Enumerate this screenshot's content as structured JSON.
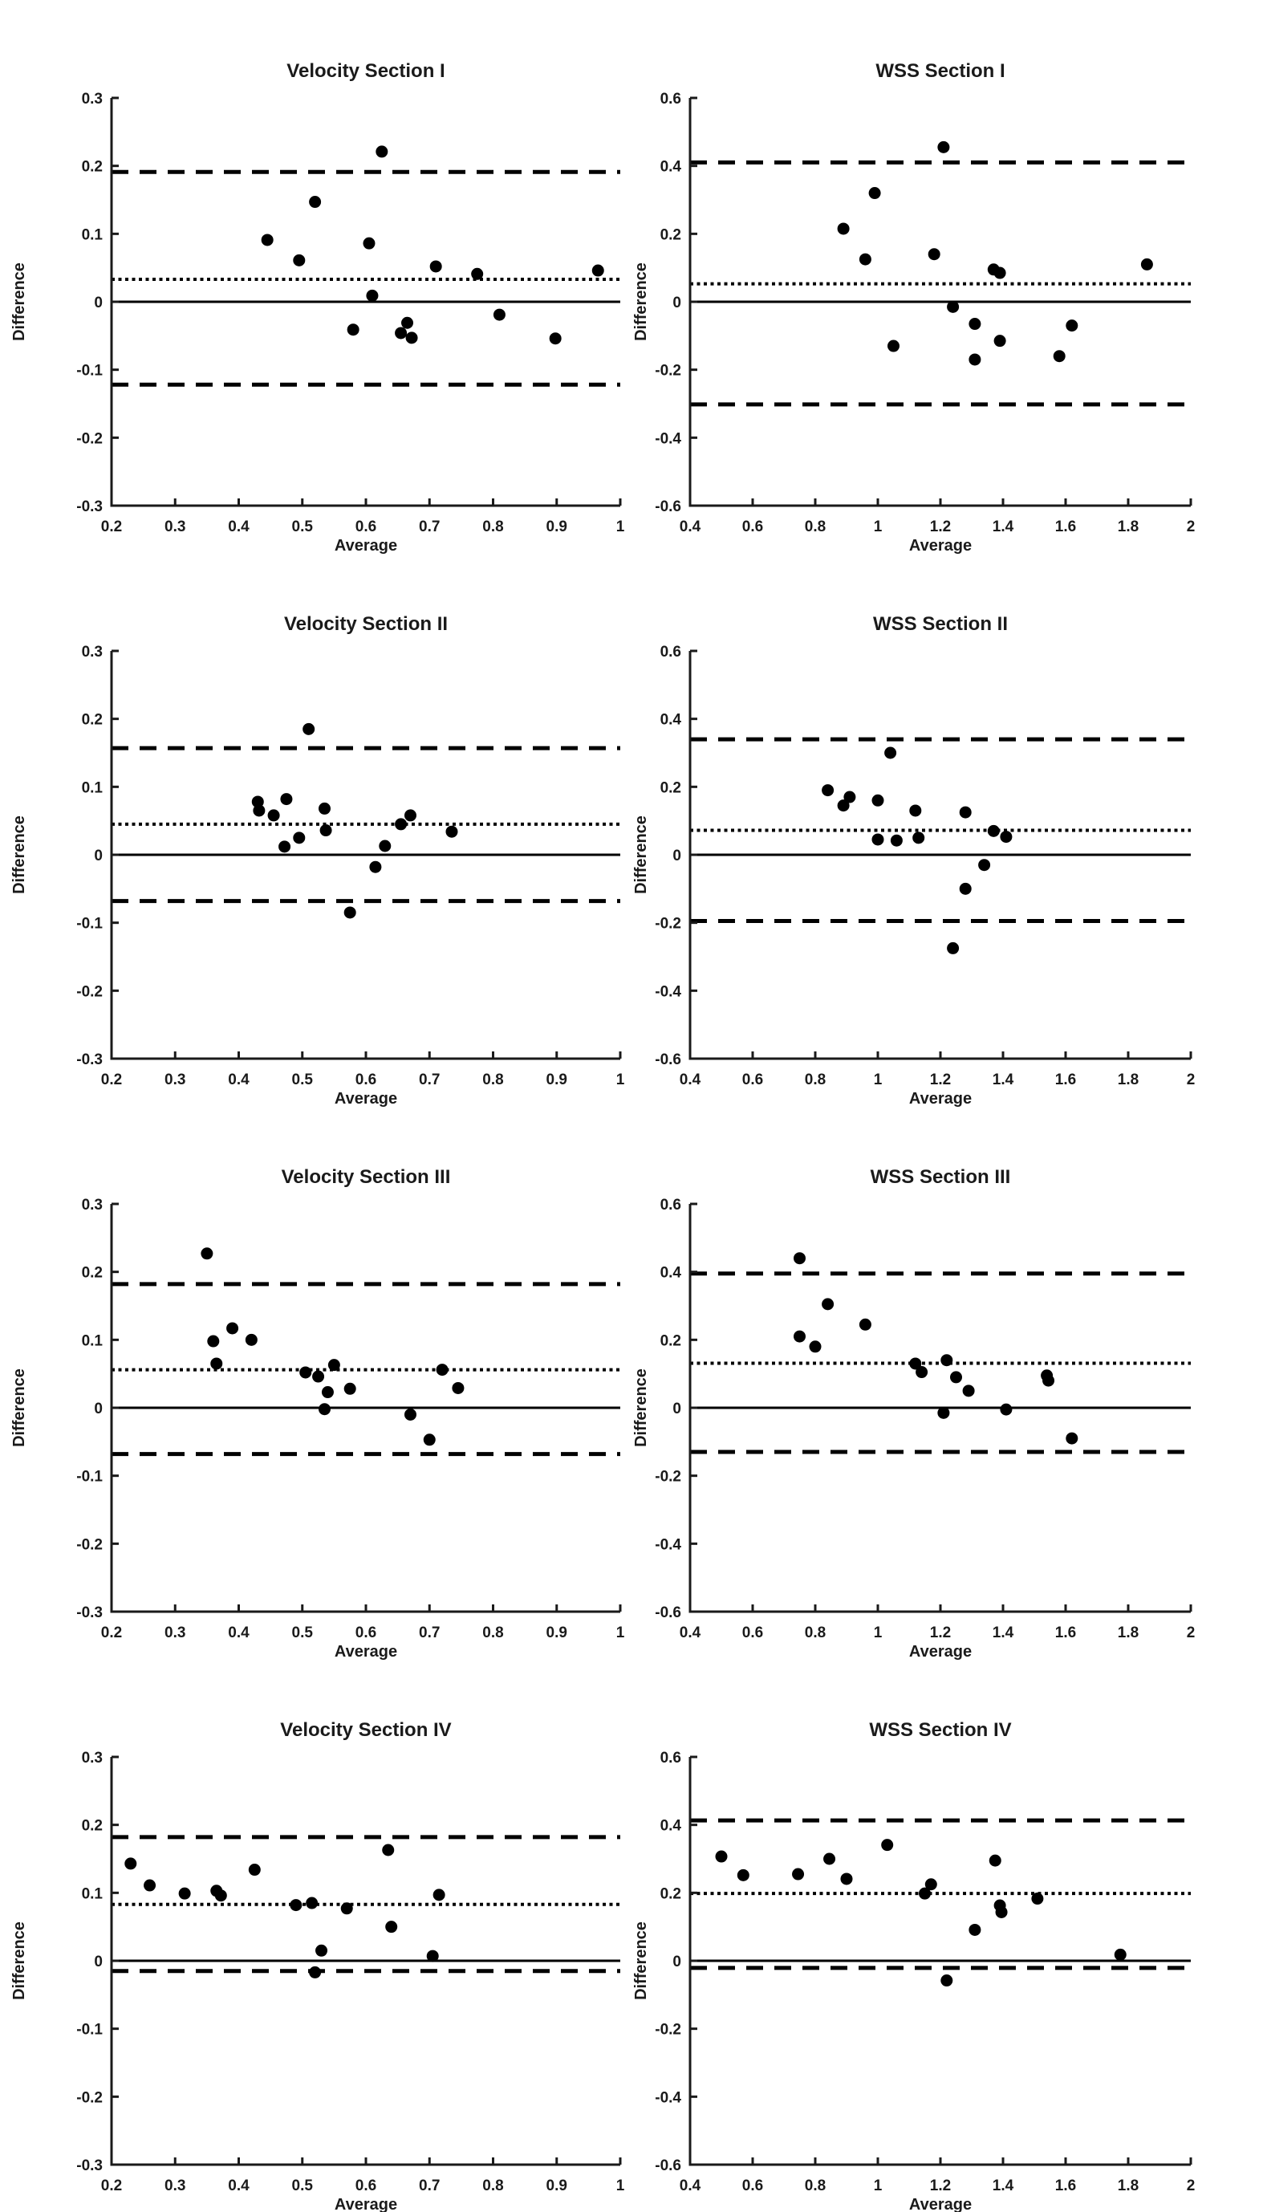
{
  "figure": {
    "background": "#ffffff",
    "data_ink": "#000000",
    "axis_color": "#1a1a1a",
    "marker": "filled-circle",
    "marker_radius": 7.5
  },
  "chart_data": [
    {
      "type": "scatter",
      "title": "Velocity Section I",
      "xlabel": "Average",
      "ylabel": "Difference",
      "xlim": [
        0.2,
        1
      ],
      "ylim": [
        -0.3,
        0.3
      ],
      "grid": false,
      "legend": false,
      "xticks": [
        0.2,
        0.3,
        0.4,
        0.5,
        0.6,
        0.7,
        0.8,
        0.9,
        1
      ],
      "xtick_labels": [
        "0.2",
        "0.3",
        "0.4",
        "0.5",
        "0.6",
        "0.7",
        "0.8",
        "0.9",
        "1"
      ],
      "yticks": [
        -0.3,
        -0.2,
        -0.1,
        0,
        0.1,
        0.2,
        0.3
      ],
      "ytick_labels": [
        "-0.3",
        "-0.2",
        "-0.1",
        "0",
        "0.1",
        "0.2",
        "0.3"
      ],
      "lines": {
        "zero": 0,
        "mean_bias": 0.033,
        "upper_loa": 0.191,
        "lower_loa": -0.122
      },
      "points": [
        [
          0.445,
          0.091
        ],
        [
          0.495,
          0.061
        ],
        [
          0.52,
          0.147
        ],
        [
          0.58,
          -0.041
        ],
        [
          0.605,
          0.086
        ],
        [
          0.61,
          0.009
        ],
        [
          0.625,
          0.221
        ],
        [
          0.655,
          -0.046
        ],
        [
          0.665,
          -0.031
        ],
        [
          0.672,
          -0.053
        ],
        [
          0.71,
          0.052
        ],
        [
          0.775,
          0.041
        ],
        [
          0.81,
          -0.019
        ],
        [
          0.898,
          -0.054
        ],
        [
          0.965,
          0.046
        ]
      ]
    },
    {
      "type": "scatter",
      "title": "WSS Section I",
      "xlabel": "Average",
      "ylabel": "Difference",
      "xlim": [
        0.4,
        2
      ],
      "ylim": [
        -0.6,
        0.6
      ],
      "grid": false,
      "legend": false,
      "xticks": [
        0.4,
        0.6,
        0.8,
        1,
        1.2,
        1.4,
        1.6,
        1.8,
        2
      ],
      "xtick_labels": [
        "0.4",
        "0.6",
        "0.8",
        "1",
        "1.2",
        "1.4",
        "1.6",
        "1.8",
        "2"
      ],
      "yticks": [
        -0.6,
        -0.4,
        -0.2,
        0,
        0.2,
        0.4,
        0.6
      ],
      "ytick_labels": [
        "-0.6",
        "-0.4",
        "-0.2",
        "0",
        "0.2",
        "0.4",
        "0.6"
      ],
      "lines": {
        "zero": 0,
        "mean_bias": 0.053,
        "upper_loa": 0.41,
        "lower_loa": -0.302
      },
      "points": [
        [
          0.89,
          0.215
        ],
        [
          0.96,
          0.125
        ],
        [
          0.99,
          0.32
        ],
        [
          1.05,
          -0.13
        ],
        [
          1.18,
          0.14
        ],
        [
          1.21,
          0.455
        ],
        [
          1.24,
          -0.015
        ],
        [
          1.31,
          -0.065
        ],
        [
          1.31,
          -0.17
        ],
        [
          1.37,
          0.095
        ],
        [
          1.39,
          0.085
        ],
        [
          1.39,
          -0.115
        ],
        [
          1.58,
          -0.16
        ],
        [
          1.62,
          -0.07
        ],
        [
          1.86,
          0.11
        ]
      ]
    },
    {
      "type": "scatter",
      "title": "Velocity Section II",
      "xlabel": "Average",
      "ylabel": "Difference",
      "xlim": [
        0.2,
        1
      ],
      "ylim": [
        -0.3,
        0.3
      ],
      "grid": false,
      "legend": false,
      "xticks": [
        0.2,
        0.3,
        0.4,
        0.5,
        0.6,
        0.7,
        0.8,
        0.9,
        1
      ],
      "xtick_labels": [
        "0.2",
        "0.3",
        "0.4",
        "0.5",
        "0.6",
        "0.7",
        "0.8",
        "0.9",
        "1"
      ],
      "yticks": [
        -0.3,
        -0.2,
        -0.1,
        0,
        0.1,
        0.2,
        0.3
      ],
      "ytick_labels": [
        "-0.3",
        "-0.2",
        "-0.1",
        "0",
        "0.1",
        "0.2",
        "0.3"
      ],
      "lines": {
        "zero": 0,
        "mean_bias": 0.045,
        "upper_loa": 0.157,
        "lower_loa": -0.068
      },
      "points": [
        [
          0.43,
          0.078
        ],
        [
          0.432,
          0.065
        ],
        [
          0.455,
          0.058
        ],
        [
          0.472,
          0.012
        ],
        [
          0.475,
          0.082
        ],
        [
          0.495,
          0.025
        ],
        [
          0.51,
          0.185
        ],
        [
          0.535,
          0.068
        ],
        [
          0.537,
          0.036
        ],
        [
          0.575,
          -0.085
        ],
        [
          0.615,
          -0.018
        ],
        [
          0.63,
          0.013
        ],
        [
          0.655,
          0.045
        ],
        [
          0.67,
          0.058
        ],
        [
          0.735,
          0.034
        ]
      ]
    },
    {
      "type": "scatter",
      "title": "WSS Section II",
      "xlabel": "Average",
      "ylabel": "Difference",
      "xlim": [
        0.4,
        2
      ],
      "ylim": [
        -0.6,
        0.6
      ],
      "grid": false,
      "legend": false,
      "xticks": [
        0.4,
        0.6,
        0.8,
        1,
        1.2,
        1.4,
        1.6,
        1.8,
        2
      ],
      "xtick_labels": [
        "0.4",
        "0.6",
        "0.8",
        "1",
        "1.2",
        "1.4",
        "1.6",
        "1.8",
        "2"
      ],
      "yticks": [
        -0.6,
        -0.4,
        -0.2,
        0,
        0.2,
        0.4,
        0.6
      ],
      "ytick_labels": [
        "-0.6",
        "-0.4",
        "-0.2",
        "0",
        "0.2",
        "0.4",
        "0.6"
      ],
      "lines": {
        "zero": 0,
        "mean_bias": 0.072,
        "upper_loa": 0.34,
        "lower_loa": -0.195
      },
      "points": [
        [
          0.84,
          0.19
        ],
        [
          0.89,
          0.145
        ],
        [
          0.91,
          0.17
        ],
        [
          1.0,
          0.16
        ],
        [
          1.0,
          0.045
        ],
        [
          1.04,
          0.3
        ],
        [
          1.06,
          0.042
        ],
        [
          1.12,
          0.13
        ],
        [
          1.13,
          0.05
        ],
        [
          1.24,
          -0.275
        ],
        [
          1.28,
          0.125
        ],
        [
          1.28,
          -0.1
        ],
        [
          1.34,
          -0.03
        ],
        [
          1.37,
          0.07
        ],
        [
          1.41,
          0.053
        ]
      ]
    },
    {
      "type": "scatter",
      "title": "Velocity Section III",
      "xlabel": "Average",
      "ylabel": "Difference",
      "xlim": [
        0.2,
        1
      ],
      "ylim": [
        -0.3,
        0.3
      ],
      "grid": false,
      "legend": false,
      "xticks": [
        0.2,
        0.3,
        0.4,
        0.5,
        0.6,
        0.7,
        0.8,
        0.9,
        1
      ],
      "xtick_labels": [
        "0.2",
        "0.3",
        "0.4",
        "0.5",
        "0.6",
        "0.7",
        "0.8",
        "0.9",
        "1"
      ],
      "yticks": [
        -0.3,
        -0.2,
        -0.1,
        0,
        0.1,
        0.2,
        0.3
      ],
      "ytick_labels": [
        "-0.3",
        "-0.2",
        "-0.1",
        "0",
        "0.1",
        "0.2",
        "0.3"
      ],
      "lines": {
        "zero": 0,
        "mean_bias": 0.056,
        "upper_loa": 0.182,
        "lower_loa": -0.068
      },
      "points": [
        [
          0.35,
          0.227
        ],
        [
          0.36,
          0.098
        ],
        [
          0.365,
          0.065
        ],
        [
          0.39,
          0.117
        ],
        [
          0.42,
          0.1
        ],
        [
          0.505,
          0.052
        ],
        [
          0.525,
          0.046
        ],
        [
          0.535,
          -0.002
        ],
        [
          0.54,
          0.023
        ],
        [
          0.55,
          0.063
        ],
        [
          0.575,
          0.028
        ],
        [
          0.67,
          -0.01
        ],
        [
          0.7,
          -0.047
        ],
        [
          0.72,
          0.056
        ],
        [
          0.745,
          0.029
        ]
      ]
    },
    {
      "type": "scatter",
      "title": "WSS Section III",
      "xlabel": "Average",
      "ylabel": "Difference",
      "xlim": [
        0.4,
        2
      ],
      "ylim": [
        -0.6,
        0.6
      ],
      "grid": false,
      "legend": false,
      "xticks": [
        0.4,
        0.6,
        0.8,
        1,
        1.2,
        1.4,
        1.6,
        1.8,
        2
      ],
      "xtick_labels": [
        "0.4",
        "0.6",
        "0.8",
        "1",
        "1.2",
        "1.4",
        "1.6",
        "1.8",
        "2"
      ],
      "yticks": [
        -0.6,
        -0.4,
        -0.2,
        0,
        0.2,
        0.4,
        0.6
      ],
      "ytick_labels": [
        "-0.6",
        "-0.4",
        "-0.2",
        "0",
        "0.2",
        "0.4",
        "0.6"
      ],
      "lines": {
        "zero": 0,
        "mean_bias": 0.131,
        "upper_loa": 0.395,
        "lower_loa": -0.13
      },
      "points": [
        [
          0.75,
          0.44
        ],
        [
          0.75,
          0.21
        ],
        [
          0.8,
          0.18
        ],
        [
          0.84,
          0.305
        ],
        [
          0.96,
          0.245
        ],
        [
          1.12,
          0.13
        ],
        [
          1.14,
          0.105
        ],
        [
          1.21,
          -0.015
        ],
        [
          1.22,
          0.14
        ],
        [
          1.25,
          0.09
        ],
        [
          1.29,
          0.05
        ],
        [
          1.41,
          -0.005
        ],
        [
          1.54,
          0.095
        ],
        [
          1.545,
          0.08
        ],
        [
          1.62,
          -0.09
        ]
      ]
    },
    {
      "type": "scatter",
      "title": "Velocity Section IV",
      "xlabel": "Average",
      "ylabel": "Difference",
      "xlim": [
        0.2,
        1
      ],
      "ylim": [
        -0.3,
        0.3
      ],
      "grid": false,
      "legend": false,
      "xticks": [
        0.2,
        0.3,
        0.4,
        0.5,
        0.6,
        0.7,
        0.8,
        0.9,
        1
      ],
      "xtick_labels": [
        "0.2",
        "0.3",
        "0.4",
        "0.5",
        "0.6",
        "0.7",
        "0.8",
        "0.9",
        "1"
      ],
      "yticks": [
        -0.3,
        -0.2,
        -0.1,
        0,
        0.1,
        0.2,
        0.3
      ],
      "ytick_labels": [
        "-0.3",
        "-0.2",
        "-0.1",
        "0",
        "0.1",
        "0.2",
        "0.3"
      ],
      "lines": {
        "zero": 0,
        "mean_bias": 0.083,
        "upper_loa": 0.182,
        "lower_loa": -0.015
      },
      "points": [
        [
          0.23,
          0.143
        ],
        [
          0.26,
          0.111
        ],
        [
          0.315,
          0.099
        ],
        [
          0.365,
          0.103
        ],
        [
          0.372,
          0.096
        ],
        [
          0.425,
          0.134
        ],
        [
          0.49,
          0.082
        ],
        [
          0.515,
          0.085
        ],
        [
          0.52,
          -0.017
        ],
        [
          0.53,
          0.015
        ],
        [
          0.57,
          0.077
        ],
        [
          0.635,
          0.163
        ],
        [
          0.64,
          0.05
        ],
        [
          0.705,
          0.007
        ],
        [
          0.715,
          0.097
        ]
      ]
    },
    {
      "type": "scatter",
      "title": "WSS Section IV",
      "xlabel": "Average",
      "ylabel": "Difference",
      "xlim": [
        0.4,
        2
      ],
      "ylim": [
        -0.6,
        0.6
      ],
      "grid": false,
      "legend": false,
      "xticks": [
        0.4,
        0.6,
        0.8,
        1,
        1.2,
        1.4,
        1.6,
        1.8,
        2
      ],
      "xtick_labels": [
        "0.4",
        "0.6",
        "0.8",
        "1",
        "1.2",
        "1.4",
        "1.6",
        "1.8",
        "2"
      ],
      "yticks": [
        -0.6,
        -0.4,
        -0.2,
        0,
        0.2,
        0.4,
        0.6
      ],
      "ytick_labels": [
        "-0.6",
        "-0.4",
        "-0.2",
        "0",
        "0.2",
        "0.4",
        "0.6"
      ],
      "lines": {
        "zero": 0,
        "mean_bias": 0.198,
        "upper_loa": 0.413,
        "lower_loa": -0.021
      },
      "points": [
        [
          0.5,
          0.307
        ],
        [
          0.57,
          0.252
        ],
        [
          0.745,
          0.255
        ],
        [
          0.845,
          0.3
        ],
        [
          0.9,
          0.241
        ],
        [
          1.03,
          0.341
        ],
        [
          1.15,
          0.198
        ],
        [
          1.17,
          0.225
        ],
        [
          1.22,
          -0.058
        ],
        [
          1.31,
          0.091
        ],
        [
          1.375,
          0.295
        ],
        [
          1.39,
          0.163
        ],
        [
          1.395,
          0.143
        ],
        [
          1.51,
          0.183
        ],
        [
          1.775,
          0.018
        ]
      ]
    }
  ]
}
